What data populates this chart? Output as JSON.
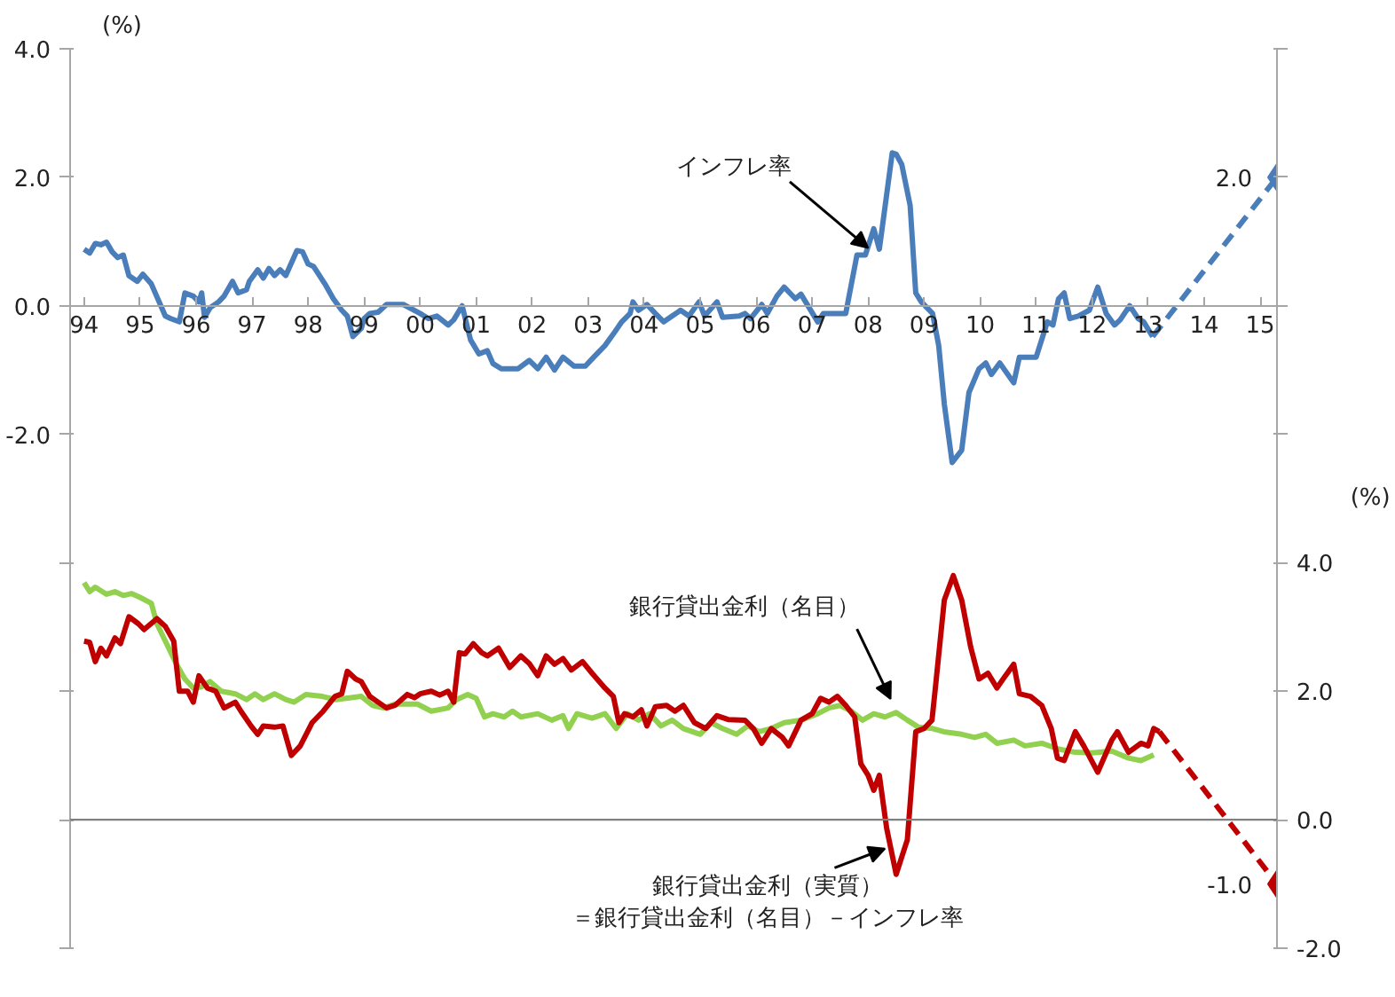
{
  "chart_data": {
    "type": "line",
    "ylabel": "(%)",
    "y2label": "(%)",
    "xlim": [
      1993.75,
      2015.3
    ],
    "xticks": [
      {
        "value": 1994,
        "label": "94"
      },
      {
        "value": 1995,
        "label": "95"
      },
      {
        "value": 1996,
        "label": "96"
      },
      {
        "value": 1997,
        "label": "97"
      },
      {
        "value": 1998,
        "label": "98"
      },
      {
        "value": 1999,
        "label": "99"
      },
      {
        "value": 2000,
        "label": "00"
      },
      {
        "value": 2001,
        "label": "01"
      },
      {
        "value": 2002,
        "label": "02"
      },
      {
        "value": 2003,
        "label": "03"
      },
      {
        "value": 2004,
        "label": "04"
      },
      {
        "value": 2005,
        "label": "05"
      },
      {
        "value": 2006,
        "label": "06"
      },
      {
        "value": 2007,
        "label": "07"
      },
      {
        "value": 2008,
        "label": "08"
      },
      {
        "value": 2009,
        "label": "09"
      },
      {
        "value": 2010,
        "label": "10"
      },
      {
        "value": 2011,
        "label": "11"
      },
      {
        "value": 2012,
        "label": "12"
      },
      {
        "value": 2013,
        "label": "13"
      },
      {
        "value": 2014,
        "label": "14"
      },
      {
        "value": 2015,
        "label": "15"
      }
    ],
    "ylim": [
      -10,
      4
    ],
    "yticks": [
      {
        "value": 4,
        "label": "4.0"
      },
      {
        "value": 2,
        "label": "2.0"
      },
      {
        "value": 0,
        "label": "0.0"
      },
      {
        "value": -2,
        "label": "-2.0"
      },
      {
        "value": -4,
        "label": null
      },
      {
        "value": -6,
        "label": null
      },
      {
        "value": -8,
        "label": null
      },
      {
        "value": -10,
        "label": null
      }
    ],
    "y2lim": [
      -2,
      12
    ],
    "y2ticks": [
      {
        "value": 12,
        "label": null
      },
      {
        "value": 10,
        "label": null
      },
      {
        "value": 8,
        "label": null
      },
      {
        "value": 6,
        "label": null
      },
      {
        "value": 4,
        "label": "4.0"
      },
      {
        "value": 2,
        "label": "2.0"
      },
      {
        "value": 0,
        "label": "0.0"
      },
      {
        "value": -2,
        "label": "-2.0"
      }
    ],
    "grid": false,
    "ref_lines": [
      {
        "axis": "y2",
        "value": 0,
        "color": "#808080"
      }
    ],
    "annotations": [
      {
        "text": "インフレ率",
        "x": 2008.0,
        "y": 0.9
      },
      "銀行貸出金利（名目）",
      "銀行貸出金利（実質）",
      "＝銀行貸出金利（名目）－インフレ率"
    ],
    "series": [
      {
        "color": "#4a7ebb",
        "line_style": "solid",
        "x": [
          1994.0,
          1994.1,
          1994.2,
          1994.3,
          1994.4,
          1994.5,
          1994.6,
          1994.7,
          1994.8,
          1994.95,
          1995.05,
          1995.2,
          1995.45,
          1995.55,
          1995.7,
          1995.8,
          1995.95,
          1996.05,
          1996.1,
          1996.15,
          1996.25,
          1996.4,
          1996.5,
          1996.65,
          1996.75,
          1996.9,
          1996.95,
          1997.1,
          1997.2,
          1997.3,
          1997.4,
          1997.5,
          1997.6,
          1997.8,
          1997.9,
          1998.0,
          1998.1,
          1998.3,
          1998.45,
          1998.6,
          1998.7,
          1998.8,
          1998.95,
          1999.0,
          1999.1,
          1999.25,
          1999.4,
          1999.7,
          2000.0,
          2000.15,
          2000.3,
          2000.5,
          2000.6,
          2000.75,
          2000.9,
          2001.05,
          2001.2,
          2001.3,
          2001.45,
          2001.75,
          2001.95,
          2002.1,
          2002.25,
          2002.4,
          2002.55,
          2002.75,
          2002.95,
          2003.1,
          2003.3,
          2003.45,
          2003.6,
          2003.75,
          2003.8,
          2003.9,
          2004.05,
          2004.2,
          2004.35,
          2004.5,
          2004.65,
          2004.8,
          2004.98,
          2005.08,
          2005.3,
          2005.4,
          2005.7,
          2005.8,
          2005.9,
          2006.1,
          2006.2,
          2006.37,
          2006.5,
          2006.7,
          2006.8,
          2007.1,
          2007.2,
          2007.6,
          2007.8,
          2007.95,
          2008.1,
          2008.2,
          2008.43,
          2008.5,
          2008.6,
          2008.75,
          2008.85,
          2008.95,
          2009.15,
          2009.26,
          2009.36,
          2009.5,
          2009.67,
          2009.8,
          2009.98,
          2010.1,
          2010.2,
          2010.35,
          2010.6,
          2010.7,
          2011.0,
          2011.2,
          2011.3,
          2011.4,
          2011.5,
          2011.6,
          2011.75,
          2011.95,
          2012.1,
          2012.25,
          2012.4,
          2012.5,
          2012.67,
          2012.82,
          2012.92,
          2013.08
        ],
        "values": [
          0.88,
          0.82,
          0.97,
          0.95,
          0.99,
          0.84,
          0.75,
          0.79,
          0.47,
          0.38,
          0.49,
          0.34,
          -0.16,
          -0.2,
          -0.25,
          0.2,
          0.15,
          0.06,
          0.2,
          -0.18,
          -0.03,
          0.06,
          0.15,
          0.38,
          0.2,
          0.25,
          0.38,
          0.56,
          0.43,
          0.58,
          0.47,
          0.56,
          0.47,
          0.86,
          0.84,
          0.65,
          0.61,
          0.34,
          0.11,
          -0.07,
          -0.16,
          -0.48,
          -0.35,
          -0.2,
          -0.12,
          -0.1,
          0.02,
          0.02,
          -0.12,
          -0.2,
          -0.16,
          -0.3,
          -0.22,
          0.0,
          -0.53,
          -0.75,
          -0.7,
          -0.9,
          -0.98,
          -0.98,
          -0.85,
          -0.98,
          -0.8,
          -1.0,
          -0.8,
          -0.94,
          -0.94,
          -0.8,
          -0.62,
          -0.44,
          -0.25,
          -0.12,
          0.06,
          -0.07,
          0.02,
          -0.12,
          -0.25,
          -0.16,
          -0.07,
          -0.16,
          0.06,
          -0.16,
          0.06,
          -0.18,
          -0.16,
          -0.12,
          -0.2,
          0.02,
          -0.12,
          0.15,
          0.29,
          0.11,
          0.18,
          -0.25,
          -0.12,
          -0.12,
          0.79,
          0.79,
          1.2,
          0.88,
          2.38,
          2.36,
          2.2,
          1.56,
          0.2,
          0.06,
          -0.12,
          -0.62,
          -1.53,
          -2.44,
          -2.25,
          -1.35,
          -0.98,
          -0.89,
          -1.07,
          -0.89,
          -1.2,
          -0.8,
          -0.8,
          -0.25,
          -0.3,
          0.11,
          0.2,
          -0.2,
          -0.16,
          -0.07,
          0.29,
          -0.12,
          -0.3,
          -0.22,
          0.0,
          -0.2,
          -0.25,
          -0.48
        ]
      },
      {
        "color": "#4a7ebb",
        "line_style": "dashed",
        "x": [
          2013.08,
          2015.3
        ],
        "values": [
          -0.48,
          2.0
        ]
      },
      {
        "type": "scatter",
        "color": "#4a7ebb",
        "marker": "diamond",
        "x": [
          2015.3
        ],
        "values": [
          2.0
        ],
        "value_labels": [
          "2.0"
        ]
      },
      {
        "axis": "y2",
        "color": "#92d050",
        "line_style": "solid",
        "x": [
          1994.0,
          1994.1,
          1994.2,
          1994.4,
          1994.55,
          1994.7,
          1994.85,
          1995.0,
          1995.2,
          1995.3,
          1995.5,
          1995.65,
          1995.8,
          1995.95,
          1996.1,
          1996.25,
          1996.45,
          1996.7,
          1996.9,
          1997.05,
          1997.2,
          1997.4,
          1997.6,
          1997.75,
          1997.96,
          1998.25,
          1998.5,
          1998.95,
          1999.15,
          1999.35,
          1999.55,
          1999.95,
          2000.2,
          2000.5,
          2000.65,
          2000.85,
          2001.0,
          2001.15,
          2001.3,
          2001.5,
          2001.65,
          2001.8,
          2002.1,
          2002.35,
          2002.55,
          2002.65,
          2002.8,
          2003.07,
          2003.3,
          2003.5,
          2003.7,
          2003.9,
          2004.1,
          2004.3,
          2004.5,
          2004.7,
          2005.0,
          2005.2,
          2005.4,
          2005.65,
          2005.85,
          2006.05,
          2006.27,
          2006.5,
          2006.8,
          2007.1,
          2007.3,
          2007.5,
          2007.7,
          2007.9,
          2008.1,
          2008.3,
          2008.5,
          2008.7,
          2008.9,
          2009.15,
          2009.35,
          2009.67,
          2009.9,
          2010.1,
          2010.3,
          2010.6,
          2010.8,
          2011.1,
          2011.4,
          2011.7,
          2012.0,
          2012.35,
          2012.65,
          2012.87,
          2013.1
        ],
        "values": [
          3.69,
          3.55,
          3.62,
          3.51,
          3.55,
          3.49,
          3.52,
          3.46,
          3.37,
          3.05,
          2.69,
          2.42,
          2.19,
          2.05,
          2.07,
          2.15,
          2.0,
          1.96,
          1.87,
          1.96,
          1.87,
          1.96,
          1.87,
          1.83,
          1.95,
          1.92,
          1.87,
          1.92,
          1.78,
          1.74,
          1.8,
          1.8,
          1.69,
          1.74,
          1.87,
          1.95,
          1.89,
          1.6,
          1.65,
          1.6,
          1.69,
          1.6,
          1.65,
          1.55,
          1.62,
          1.42,
          1.65,
          1.58,
          1.65,
          1.42,
          1.65,
          1.55,
          1.65,
          1.46,
          1.55,
          1.42,
          1.33,
          1.51,
          1.42,
          1.33,
          1.46,
          1.37,
          1.42,
          1.51,
          1.55,
          1.65,
          1.74,
          1.78,
          1.69,
          1.55,
          1.65,
          1.6,
          1.67,
          1.55,
          1.44,
          1.42,
          1.37,
          1.33,
          1.28,
          1.33,
          1.19,
          1.24,
          1.15,
          1.19,
          1.1,
          1.05,
          1.04,
          1.07,
          0.96,
          0.92,
          1.01
        ]
      },
      {
        "axis": "y2",
        "color": "#c00000",
        "line_style": "solid",
        "x": [
          1994.0,
          1994.1,
          1994.2,
          1994.3,
          1994.4,
          1994.55,
          1994.65,
          1994.8,
          1994.97,
          1995.07,
          1995.3,
          1995.45,
          1995.6,
          1995.7,
          1995.85,
          1995.95,
          1996.05,
          1996.2,
          1996.35,
          1996.5,
          1996.7,
          1996.8,
          1996.98,
          1997.1,
          1997.2,
          1997.4,
          1997.55,
          1997.7,
          1997.86,
          1998.07,
          1998.27,
          1998.48,
          1998.6,
          1998.7,
          1998.85,
          1998.95,
          1999.1,
          1999.25,
          1999.4,
          1999.55,
          1999.77,
          1999.9,
          2000.0,
          2000.2,
          2000.35,
          2000.5,
          2000.6,
          2000.7,
          2000.8,
          2000.95,
          2001.1,
          2001.2,
          2001.4,
          2001.6,
          2001.8,
          2001.95,
          2002.1,
          2002.25,
          2002.4,
          2002.55,
          2002.7,
          2002.9,
          2003.07,
          2003.3,
          2003.45,
          2003.55,
          2003.65,
          2003.8,
          2003.95,
          2004.05,
          2004.2,
          2004.4,
          2004.55,
          2004.7,
          2004.9,
          2005.1,
          2005.3,
          2005.5,
          2005.8,
          2005.95,
          2006.1,
          2006.27,
          2006.47,
          2006.58,
          2006.8,
          2007.0,
          2007.15,
          2007.3,
          2007.45,
          2007.6,
          2007.76,
          2007.87,
          2008.0,
          2008.1,
          2008.2,
          2008.33,
          2008.5,
          2008.7,
          2008.85,
          2009.0,
          2009.14,
          2009.2,
          2009.36,
          2009.52,
          2009.67,
          2009.83,
          2009.98,
          2010.14,
          2010.3,
          2010.45,
          2010.6,
          2010.7,
          2010.9,
          2011.1,
          2011.27,
          2011.38,
          2011.5,
          2011.7,
          2011.85,
          2012.1,
          2012.35,
          2012.45,
          2012.65,
          2012.87,
          2013.0,
          2013.1,
          2013.2
        ],
        "values": [
          2.78,
          2.76,
          2.46,
          2.67,
          2.55,
          2.83,
          2.74,
          3.16,
          3.05,
          2.96,
          3.13,
          3.01,
          2.78,
          2.0,
          2.0,
          1.83,
          2.24,
          2.05,
          2.0,
          1.74,
          1.83,
          1.69,
          1.46,
          1.33,
          1.46,
          1.44,
          1.46,
          1.0,
          1.15,
          1.51,
          1.69,
          1.92,
          1.96,
          2.31,
          2.19,
          2.15,
          1.92,
          1.83,
          1.74,
          1.78,
          1.95,
          1.9,
          1.96,
          2.0,
          1.94,
          2.0,
          1.83,
          2.6,
          2.58,
          2.74,
          2.6,
          2.55,
          2.67,
          2.37,
          2.55,
          2.43,
          2.24,
          2.55,
          2.42,
          2.51,
          2.33,
          2.46,
          2.28,
          2.05,
          1.92,
          1.51,
          1.65,
          1.6,
          1.71,
          1.46,
          1.76,
          1.78,
          1.69,
          1.78,
          1.51,
          1.42,
          1.62,
          1.56,
          1.55,
          1.42,
          1.19,
          1.42,
          1.28,
          1.15,
          1.55,
          1.65,
          1.89,
          1.83,
          1.92,
          1.78,
          1.6,
          0.87,
          0.69,
          0.46,
          0.69,
          -0.13,
          -0.85,
          -0.31,
          1.37,
          1.42,
          1.55,
          2.05,
          3.42,
          3.8,
          3.42,
          2.69,
          2.19,
          2.28,
          2.05,
          2.24,
          2.42,
          1.96,
          1.92,
          1.78,
          1.42,
          0.96,
          0.92,
          1.37,
          1.15,
          0.74,
          1.24,
          1.37,
          1.05,
          1.19,
          1.15,
          1.42,
          1.37
        ]
      },
      {
        "axis": "y2",
        "color": "#c00000",
        "line_style": "dashed",
        "x": [
          2013.2,
          2015.3
        ],
        "values": [
          1.37,
          -1.0
        ]
      },
      {
        "type": "scatter",
        "axis": "y2",
        "color": "#c00000",
        "marker": "diamond",
        "x": [
          2015.3
        ],
        "values": [
          -1.0
        ],
        "value_labels": [
          "-1.0"
        ]
      }
    ]
  }
}
